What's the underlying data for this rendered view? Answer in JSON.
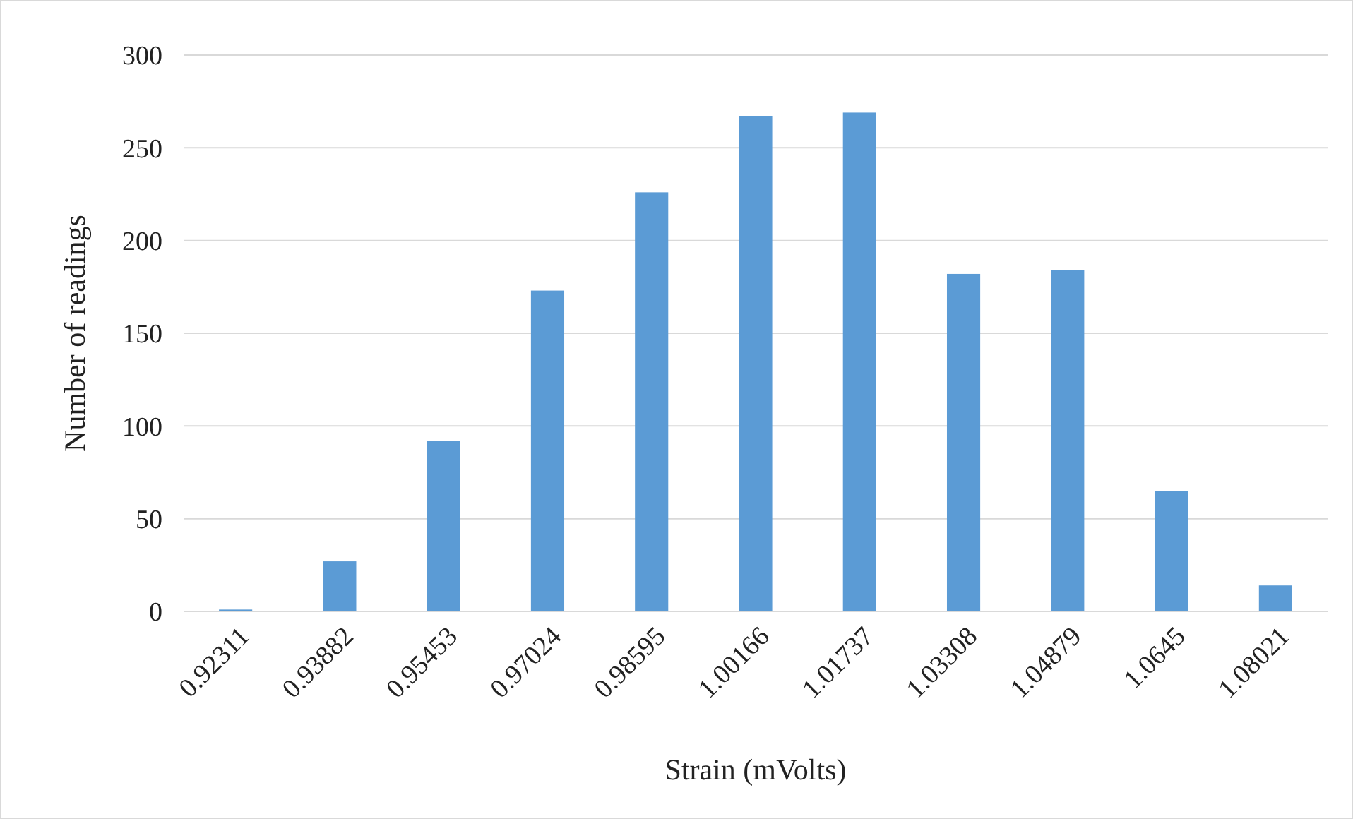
{
  "chart_data": {
    "type": "bar",
    "xlabel": "Strain (mVolts)",
    "ylabel": "Number of readings",
    "categories": [
      "0.92311",
      "0.93882",
      "0.95453",
      "0.97024",
      "0.98595",
      "1.00166",
      "1.01737",
      "1.03308",
      "1.04879",
      "1.0645",
      "1.08021"
    ],
    "values": [
      1,
      27,
      92,
      173,
      226,
      267,
      269,
      182,
      184,
      65,
      14
    ],
    "color": "#5b9bd5",
    "ylim": [
      0,
      300
    ],
    "yticks": [
      0,
      50,
      100,
      150,
      200,
      250,
      300
    ],
    "grid": "y"
  }
}
